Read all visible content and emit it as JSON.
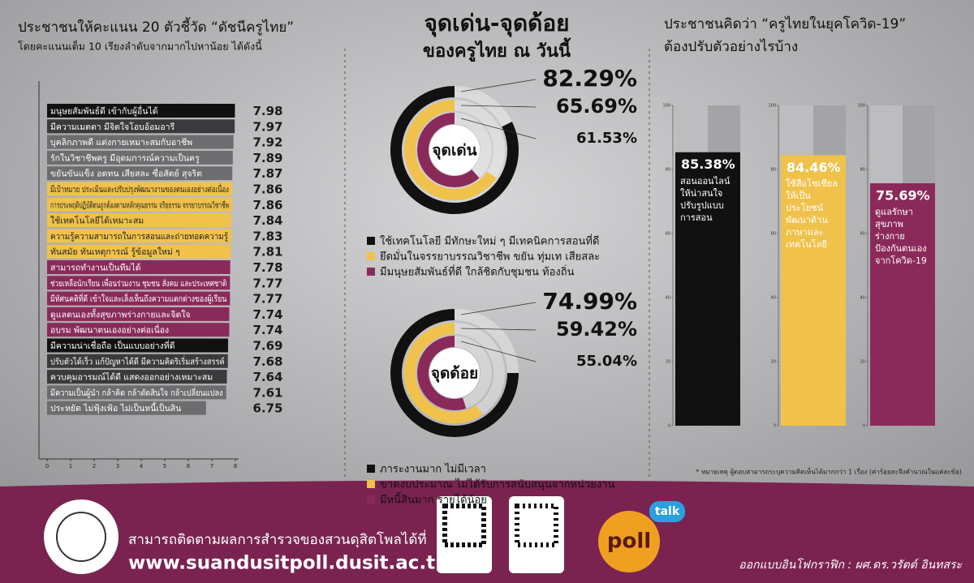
{
  "chart_data": [
    {
      "type": "hbar",
      "title": "ประชาชนให้คะแนน 20 ตัวชี้วัด “ดัชนีครูไทย”",
      "subtitle": "โดยคะแนนเต็ม 10 เรียงลำดับจากมากไปหาน้อย ได้ดังนี้",
      "categories": [
        "มนุษยสัมพันธ์ดี เข้ากับผู้อื่นได้",
        "มีความเมตตา มีจิตใจโอบอ้อมอารี",
        "บุคลิกภาพดี แต่งกายเหมาะสมกับอาชีพ",
        "รักในวิชาชีพครู มีอุดมการณ์ความเป็นครู",
        "ขยันขันแข็ง อดทน เสียสละ ซื่อสัตย์ สุจริต",
        "มีเป้าหมาย ประเมินและปรับปรุงพัฒนางานของตนเองอย่างต่อเนื่อง",
        "การประพฤติปฏิบัติตนถูกต้องตามหลักคุณธรรม จริยธรรม จรรยาบรรณวิชาชีพ",
        "ใช้เทคโนโลยีได้เหมาะสม",
        "ความรู้ความสามารถในการสอนและถ่ายทอดความรู้",
        "ทันสมัย ทันเหตุการณ์ รู้ข้อมูลใหม่ ๆ",
        "สามารถทำงานเป็นทีมได้",
        "ช่วยเหลือนักเรียน เพื่อนร่วมงาน ชุมชน สังคม และประเทศชาติ",
        "มีทัศนคติที่ดี เข้าใจและเล็งเห็นถึงความแตกต่างของผู้เรียน",
        "ดูแลตนเองทั้งสุขภาพร่างกายและจิตใจ",
        "อบรม พัฒนาตนเองอย่างต่อเนื่อง",
        "มีความน่าเชื่อถือ เป็นแบบอย่างที่ดี",
        "ปรับตัวได้เร็ว แก้ปัญหาได้ดี มีความคิดริเริ่มสร้างสรรค์",
        "ควบคุมอารมณ์ได้ดี แสดงออกอย่างเหมาะสม",
        "มีความเป็นผู้นำ กล้าคิด กล้าตัดสินใจ กล้าเปลี่ยนแปลง",
        "ประหยัด ไม่ฟุ้งเฟ้อ ไม่เป็นหนี้เป็นสิน"
      ],
      "values": [
        7.98,
        7.97,
        7.92,
        7.89,
        7.87,
        7.86,
        7.86,
        7.84,
        7.83,
        7.81,
        7.78,
        7.77,
        7.77,
        7.74,
        7.74,
        7.69,
        7.68,
        7.64,
        7.61,
        6.75
      ],
      "colors": [
        "#111111",
        "#3a3a3c",
        "#6d6d70",
        "#6d6d70",
        "#6d6d70",
        "#f0c24b",
        "#f0c24b",
        "#f0c24b",
        "#f0c24b",
        "#f0c24b",
        "#8a2a5a",
        "#8a2a5a",
        "#8a2a5a",
        "#8a2a5a",
        "#8a2a5a",
        "#111111",
        "#3a3a3c",
        "#3a3a3c",
        "#6d6d70",
        "#6d6d70"
      ],
      "xlim": [
        0,
        8
      ],
      "xticks": [
        0,
        1,
        2,
        3,
        4,
        5,
        6,
        7,
        8
      ]
    },
    {
      "type": "radial",
      "title": "จุดเด่น-จุดด้อย",
      "subtitle": "ของครูไทย ณ วันนี้",
      "center_label": "จุดเด่น",
      "categories": [
        "ใช้เทคโนโลยี มีทักษะใหม่ ๆ มีเทคนิคการสอนที่ดี",
        "ยึดมั่นในจรรยาบรรณวิชาชีพ ขยัน ทุ่มเท เสียสละ",
        "มีมนุษยสัมพันธ์ที่ดี ใกล้ชิดกับชุมชน ท้องถิ่น"
      ],
      "values": [
        82.29,
        65.69,
        61.53
      ],
      "value_labels": [
        "82.29%",
        "65.69%",
        "61.53%"
      ],
      "colors": [
        "#111111",
        "#f0c24b",
        "#8a2a5a"
      ],
      "ylim": [
        0,
        100
      ]
    },
    {
      "type": "radial",
      "center_label": "จุดด้อย",
      "categories": [
        "ภาระงานมาก ไม่มีเวลา",
        "ขาดงบประมาณ ไม่ได้รับการสนับสนุนจากหน่วยงาน",
        "มีหนี้สินมาก รายได้น้อย"
      ],
      "values": [
        74.99,
        59.42,
        55.04
      ],
      "value_labels": [
        "74.99%",
        "59.42%",
        "55.04%"
      ],
      "colors": [
        "#111111",
        "#f0c24b",
        "#8a2a5a"
      ],
      "ylim": [
        0,
        100
      ]
    },
    {
      "type": "bar",
      "title": "ประชาชนคิดว่า “ครูไทยในยุคโควิด-19”",
      "subtitle": "ต้องปรับตัวอย่างไรบ้าง",
      "categories": [
        "สอนออนไลน์ให้น่าสนใจ ปรับรูปแบบการสอน",
        "ใช้สื่อโซเชียลให้เป็นประโยชน์ พัฒนาด้านภาษาและเทคโนโลยี",
        "ดูแลรักษาสุขภาพร่างกาย ป้องกันตนเองจากโควิด-19"
      ],
      "values": [
        85.38,
        84.46,
        75.69
      ],
      "value_labels": [
        "85.38%",
        "84.46%",
        "75.69%"
      ],
      "colors": [
        "#111111",
        "#f0c24b",
        "#8a2a5a"
      ],
      "ylim": [
        0,
        100
      ],
      "yticks": [
        0,
        20,
        40,
        60,
        80,
        100
      ],
      "note": "* หมายเหตุ ผู้ตอบสามารถระบุความคิดเห็นได้มากกว่า 1 เรื่อง (ค่าร้อยละจึงคำนวณในแต่ละข้อ)"
    }
  ],
  "footer": {
    "text": "สามารถติดตามผลการสำรวจของสวนดุสิตโพลได้ที่",
    "url": "www.suandusitpoll.dusit.ac.th",
    "logo": "poll",
    "badge": "talk",
    "credit": "ออกแบบอินโฟกราฟิก : ผศ.ดร.วรัตต์ อินทสระ"
  }
}
